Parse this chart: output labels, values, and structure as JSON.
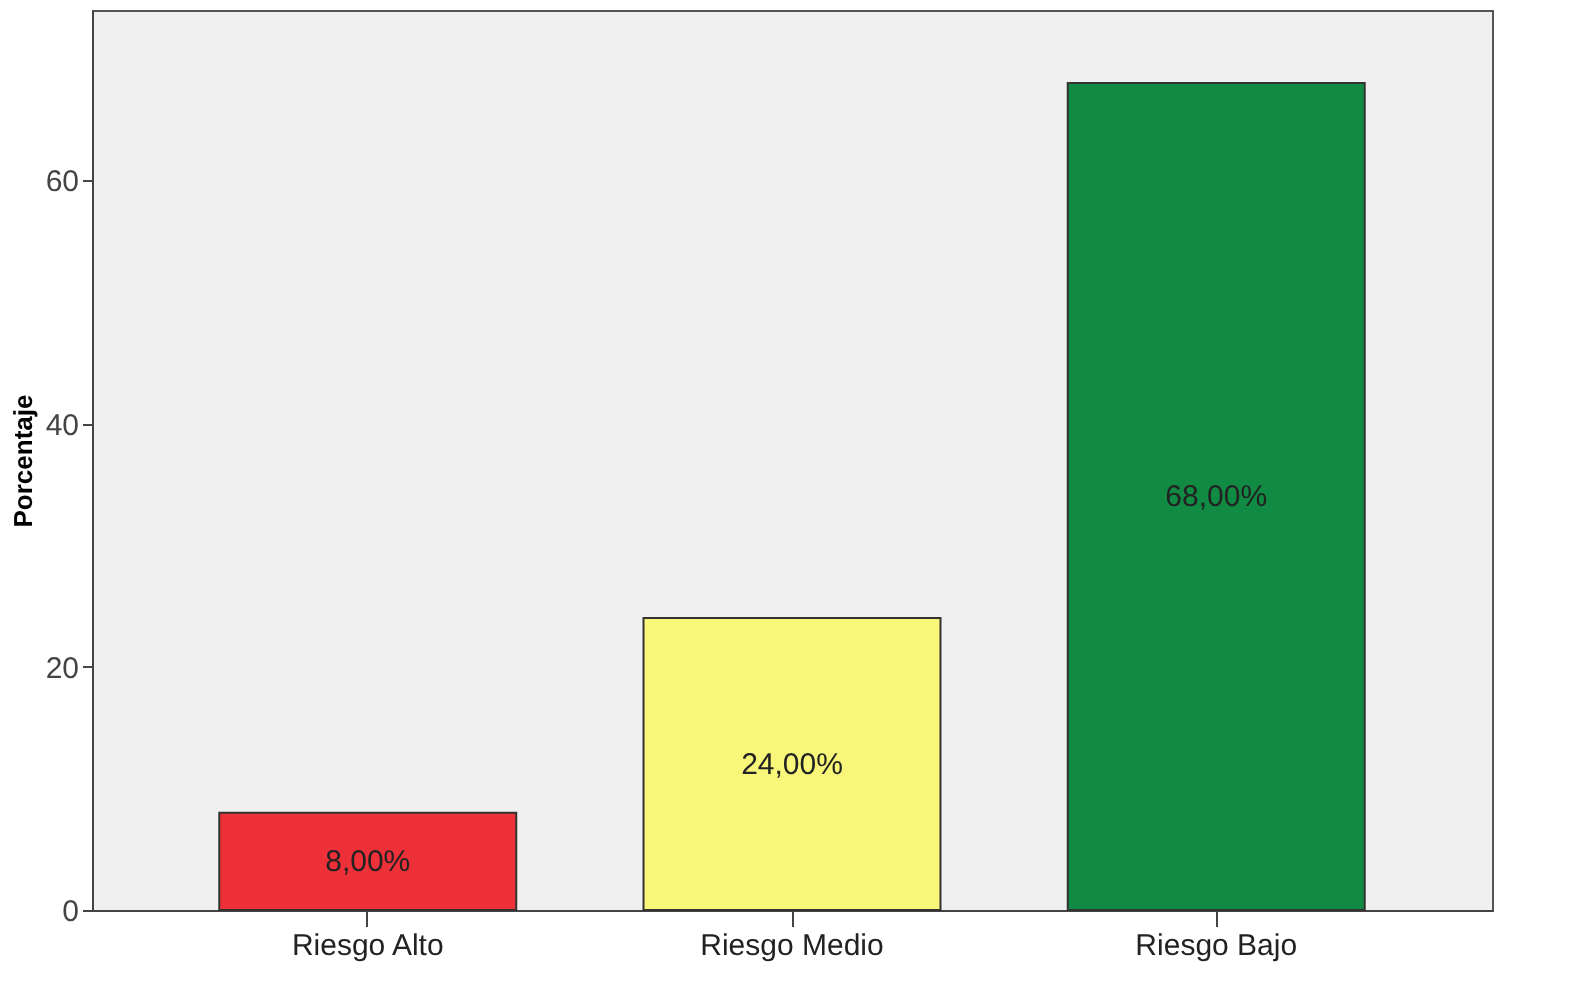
{
  "chart_data": {
    "type": "bar",
    "ylabel": "Porcentaje",
    "categories": [
      "Riesgo Alto",
      "Riesgo Medio",
      "Riesgo Bajo"
    ],
    "values": [
      8,
      24,
      68
    ],
    "colors": [
      "#ee3038",
      "#f8f77a",
      "#118a44"
    ],
    "value_labels": [
      "8,00%",
      "24,00%",
      "68,00%"
    ],
    "ylim": [
      0,
      74
    ],
    "yticks": [
      0,
      20,
      40,
      60
    ],
    "grid": false
  }
}
